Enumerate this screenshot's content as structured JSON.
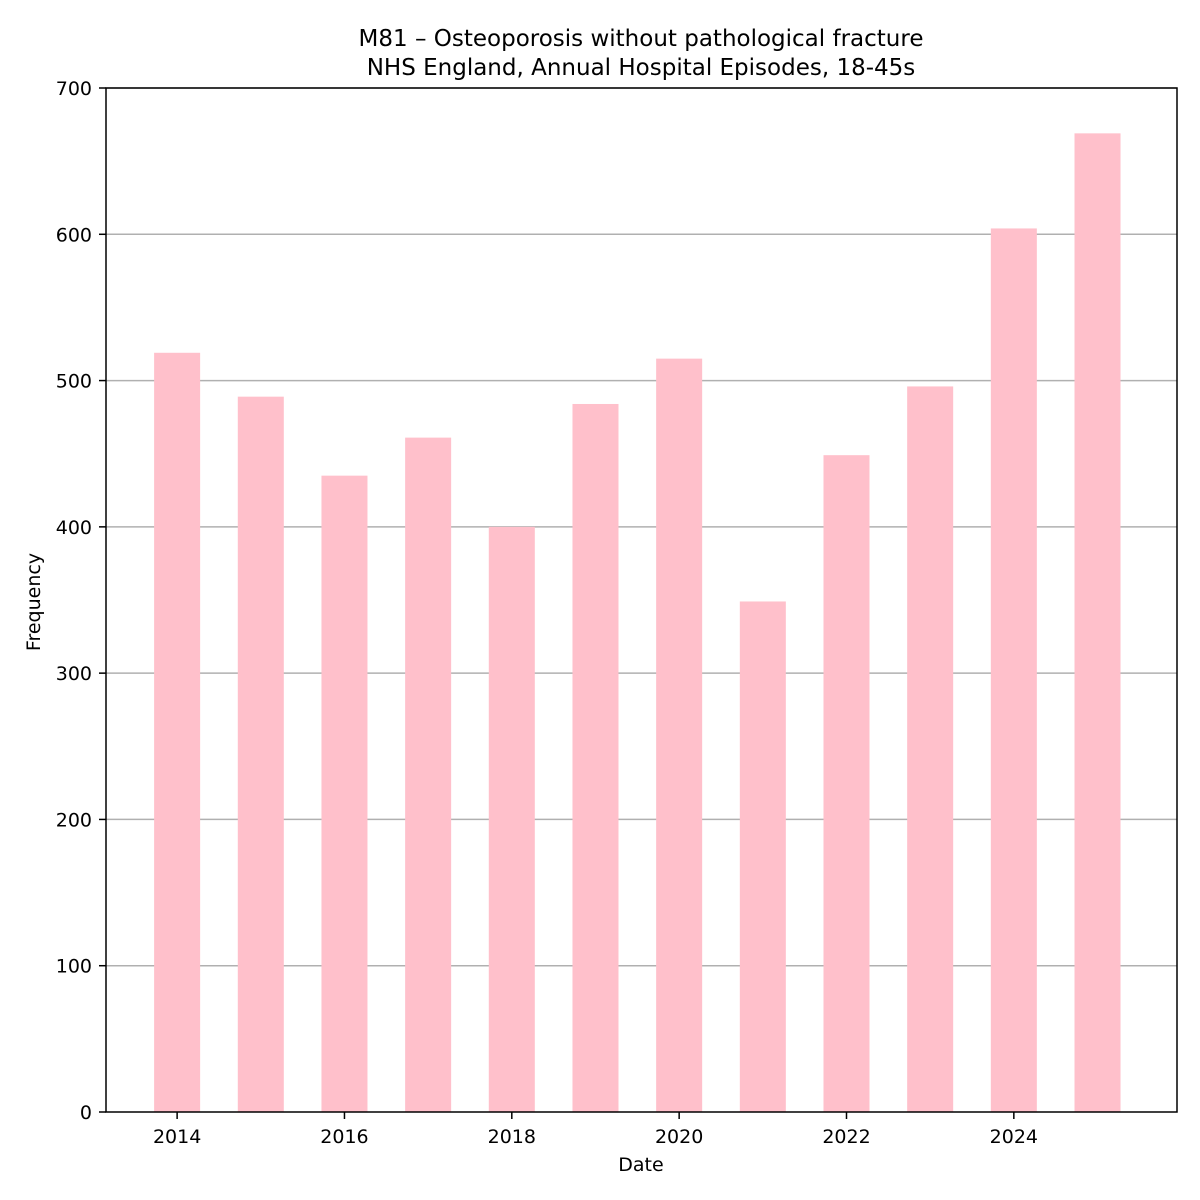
{
  "chart_data": {
    "type": "bar",
    "title_lines": [
      "M81 – Osteoporosis without pathological fracture",
      "NHS England, Annual Hospital Episodes, 18-45s"
    ],
    "xlabel": "Date",
    "ylabel": "Frequency",
    "categories": [
      2014,
      2015,
      2016,
      2017,
      2018,
      2019,
      2020,
      2021,
      2022,
      2023,
      2024,
      2025
    ],
    "values": [
      519,
      489,
      435,
      461,
      400,
      484,
      515,
      349,
      449,
      496,
      604,
      669
    ],
    "xlim": [
      2013.15,
      2025.95
    ],
    "ylim": [
      0,
      700
    ],
    "xticks": [
      2014,
      2016,
      2018,
      2020,
      2022,
      2024
    ],
    "yticks": [
      0,
      100,
      200,
      300,
      400,
      500,
      600,
      700
    ],
    "bar_color": "#ffc0cb",
    "grid": "y",
    "legend": "none"
  }
}
